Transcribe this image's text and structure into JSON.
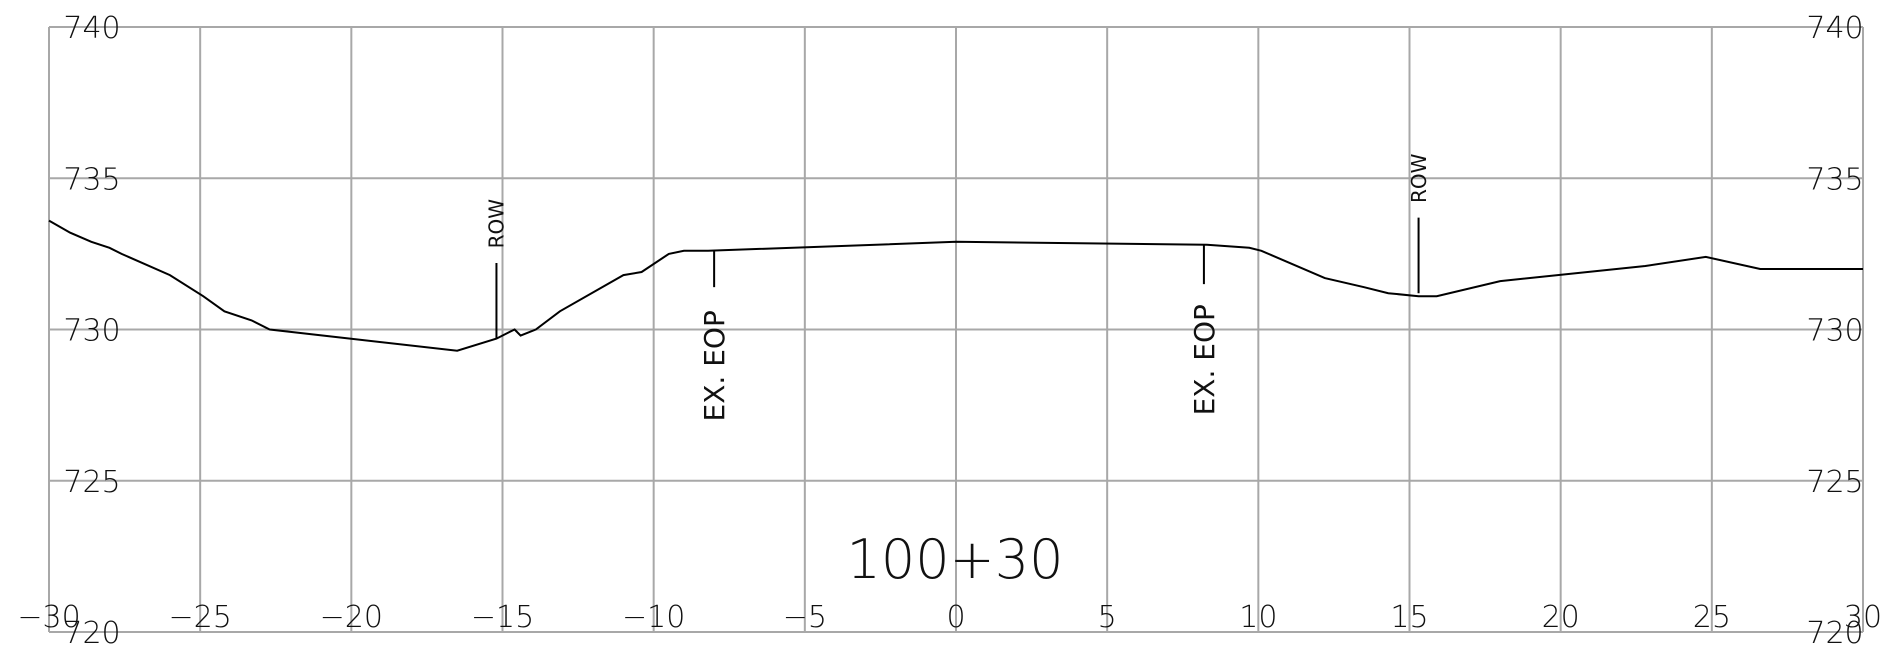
{
  "chart_data": {
    "type": "line",
    "title": "100+30",
    "xlabel": "",
    "ylabel": "",
    "xlim": [
      -30,
      30
    ],
    "ylim": [
      720,
      740
    ],
    "x_ticks": [
      -30,
      -25,
      -20,
      -15,
      -10,
      -5,
      0,
      5,
      10,
      15,
      20,
      25,
      30
    ],
    "x_tick_labels": [
      "−30",
      "−25",
      "−20",
      "−15",
      "−10",
      "−5",
      "0",
      "5",
      "10",
      "15",
      "20",
      "25",
      "30"
    ],
    "y_ticks": [
      720,
      725,
      730,
      735,
      740
    ],
    "y_tick_labels": [
      "720",
      "725",
      "730",
      "735",
      "740"
    ],
    "grid": true,
    "series": [
      {
        "x": [
          -30,
          -29.3,
          -28.6,
          -28.0,
          -27.6,
          -26.0,
          -24.9,
          -24.2,
          -23.3,
          -22.7,
          -16.5,
          -15.2,
          -14.8,
          -14.6,
          -14.4,
          -13.9,
          -13.1,
          -11.0,
          -10.4,
          -9.5,
          -9.0,
          -8.2,
          0,
          8.3,
          9.7,
          10.1,
          12.2,
          13.5,
          14.3,
          15.3,
          15.9,
          18.0,
          22.8,
          24.8,
          26.6,
          30
        ],
        "y": [
          733.6,
          733.2,
          732.9,
          732.7,
          732.5,
          731.8,
          731.1,
          730.6,
          730.3,
          730.0,
          729.3,
          729.7,
          729.9,
          730.0,
          729.8,
          730.0,
          730.6,
          731.8,
          731.9,
          732.5,
          732.6,
          732.6,
          732.9,
          732.8,
          732.7,
          732.6,
          731.7,
          731.4,
          731.2,
          731.1,
          731.1,
          731.6,
          732.1,
          732.4,
          732.0,
          732.0
        ]
      }
    ],
    "annotations": [
      {
        "text": "ROW",
        "x": -15.2,
        "y_from": 729.7,
        "y_to": 732.2,
        "label_y": 733.5
      },
      {
        "text": "EX. EOP",
        "x": -8.0,
        "y_from": 732.6,
        "y_to": 731.4,
        "label_y": 728.8
      },
      {
        "text": "EX. EOP",
        "x": 8.2,
        "y_from": 732.8,
        "y_to": 731.5,
        "label_y": 729.0
      },
      {
        "text": "ROW",
        "x": 15.3,
        "y_from": 731.2,
        "y_to": 733.7,
        "label_y": 735.0
      }
    ]
  }
}
